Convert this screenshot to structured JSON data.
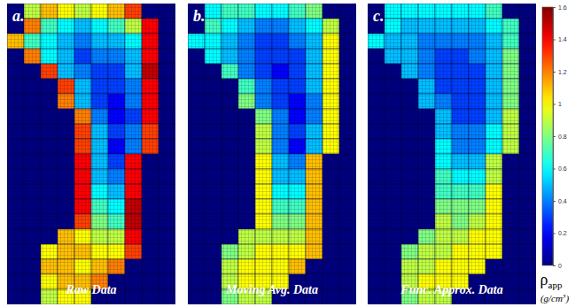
{
  "chart_data": {
    "type": "heatmap",
    "panels": [
      {
        "label": "a.",
        "title": "Raw Data",
        "cells": [
          [
            0,
            0.9,
            1.1,
            1.0,
            0.9,
            1.0,
            1.1,
            1.3,
            0,
            0
          ],
          [
            0,
            1.2,
            0.7,
            0.6,
            0.5,
            0.6,
            0.7,
            0.9,
            1.4,
            0
          ],
          [
            1.1,
            0.7,
            0.6,
            0.5,
            0.4,
            0.5,
            0.5,
            0.6,
            1.4,
            0
          ],
          [
            0,
            1.2,
            0.6,
            0.5,
            0.3,
            0.4,
            0.4,
            0.5,
            1.4,
            0
          ],
          [
            0,
            0,
            1.3,
            0.5,
            0.4,
            0.3,
            0.3,
            0.5,
            1.5,
            0
          ],
          [
            0,
            0,
            0,
            1.3,
            0.5,
            0.3,
            0.3,
            0.4,
            1.4,
            0
          ],
          [
            0,
            0,
            0,
            1.2,
            0.5,
            0.3,
            0.2,
            0.4,
            1.4,
            0
          ],
          [
            0,
            0,
            0,
            0,
            1.2,
            0.4,
            0.2,
            0.3,
            1.4,
            0
          ],
          [
            0,
            0,
            0,
            0,
            1.3,
            0.5,
            0.3,
            0.4,
            1.3,
            0
          ],
          [
            0,
            0,
            0,
            0,
            1.3,
            0.5,
            0.2,
            0.4,
            1.3,
            0
          ],
          [
            0,
            0,
            0,
            0,
            1.4,
            0.5,
            0.3,
            1.4,
            0,
            0
          ],
          [
            0,
            0,
            0,
            0,
            1.4,
            0.5,
            0.4,
            1.4,
            0,
            0
          ],
          [
            0,
            0,
            0,
            0,
            1.4,
            0.6,
            0.5,
            1.4,
            0,
            0
          ],
          [
            0,
            0,
            0,
            0,
            1.4,
            0.7,
            0.6,
            1.5,
            0,
            0
          ],
          [
            0,
            0,
            0,
            0,
            1.3,
            0.8,
            0.7,
            1.5,
            0,
            0
          ],
          [
            0,
            0,
            0,
            1.1,
            1.0,
            0.9,
            0.9,
            1.4,
            0,
            0
          ],
          [
            0,
            0,
            1.0,
            1.1,
            1.1,
            1.0,
            1.0,
            1.3,
            0,
            0
          ],
          [
            0,
            0,
            1.1,
            1.1,
            1.0,
            1.1,
            1.2,
            0,
            0,
            0
          ],
          [
            0,
            0,
            1.0,
            1.1,
            1.1,
            1.2,
            0,
            0,
            0,
            0
          ],
          [
            0,
            0,
            0.9,
            1.0,
            1.0,
            0,
            0,
            0,
            0,
            0
          ]
        ]
      },
      {
        "label": "b.",
        "title": "Moving Avg. Data",
        "cells": [
          [
            0,
            0.6,
            0.7,
            0.7,
            0.6,
            0.6,
            0.7,
            0.8,
            0,
            0
          ],
          [
            0,
            0.7,
            0.6,
            0.5,
            0.4,
            0.4,
            0.5,
            0.6,
            0.9,
            0
          ],
          [
            0.6,
            0.6,
            0.5,
            0.4,
            0.3,
            0.3,
            0.4,
            0.5,
            1.0,
            0
          ],
          [
            0,
            0.6,
            0.5,
            0.4,
            0.3,
            0.3,
            0.3,
            0.5,
            1.0,
            0
          ],
          [
            0,
            0,
            0.7,
            0.4,
            0.3,
            0.2,
            0.3,
            0.5,
            1.0,
            0
          ],
          [
            0,
            0,
            0,
            0.7,
            0.4,
            0.3,
            0.3,
            0.5,
            1.0,
            0
          ],
          [
            0,
            0,
            0,
            0.8,
            0.4,
            0.3,
            0.2,
            0.4,
            1.0,
            0
          ],
          [
            0,
            0,
            0,
            0,
            0.8,
            0.4,
            0.2,
            0.4,
            1.0,
            0
          ],
          [
            0,
            0,
            0,
            0,
            0.9,
            0.4,
            0.3,
            0.5,
            1.0,
            0
          ],
          [
            0,
            0,
            0,
            0,
            0.9,
            0.4,
            0.2,
            0.5,
            1.0,
            0
          ],
          [
            0,
            0,
            0,
            0,
            1.0,
            0.5,
            0.4,
            1.1,
            0,
            0
          ],
          [
            0,
            0,
            0,
            0,
            1.0,
            0.5,
            0.5,
            1.1,
            0,
            0
          ],
          [
            0,
            0,
            0,
            0,
            1.0,
            0.6,
            0.6,
            1.1,
            0,
            0
          ],
          [
            0,
            0,
            0,
            0,
            1.0,
            0.7,
            0.7,
            1.1,
            0,
            0
          ],
          [
            0,
            0,
            0,
            0,
            1.0,
            0.8,
            0.8,
            1.1,
            0,
            0
          ],
          [
            0,
            0,
            0,
            0.9,
            0.9,
            0.9,
            0.9,
            1.1,
            0,
            0
          ],
          [
            0,
            0,
            0.8,
            0.9,
            1.0,
            1.0,
            1.0,
            1.1,
            0,
            0
          ],
          [
            0,
            0,
            0.9,
            1.0,
            1.0,
            1.0,
            1.1,
            0,
            0,
            0
          ],
          [
            0,
            0,
            0.9,
            1.0,
            1.0,
            1.0,
            0,
            0,
            0,
            0
          ],
          [
            0,
            0,
            0.8,
            0.9,
            0.9,
            0,
            0,
            0,
            0,
            0
          ]
        ]
      },
      {
        "label": "c.",
        "title": "Func. Approx. Data",
        "cells": [
          [
            0,
            0.6,
            0.6,
            0.6,
            0.6,
            0.6,
            0.6,
            0.7,
            0,
            0
          ],
          [
            0,
            0.6,
            0.5,
            0.5,
            0.5,
            0.5,
            0.5,
            0.6,
            0.7,
            0
          ],
          [
            0.6,
            0.5,
            0.5,
            0.4,
            0.4,
            0.4,
            0.4,
            0.5,
            0.7,
            0
          ],
          [
            0,
            0.5,
            0.5,
            0.4,
            0.3,
            0.3,
            0.4,
            0.5,
            0.8,
            0
          ],
          [
            0,
            0,
            0.5,
            0.4,
            0.3,
            0.3,
            0.3,
            0.5,
            0.8,
            0
          ],
          [
            0,
            0,
            0,
            0.5,
            0.3,
            0.3,
            0.3,
            0.5,
            0.8,
            0
          ],
          [
            0,
            0,
            0,
            0.5,
            0.4,
            0.3,
            0.3,
            0.5,
            0.8,
            0
          ],
          [
            0,
            0,
            0,
            0,
            0.5,
            0.3,
            0.3,
            0.5,
            0.9,
            0
          ],
          [
            0,
            0,
            0,
            0,
            0.5,
            0.4,
            0.4,
            0.6,
            0.9,
            0
          ],
          [
            0,
            0,
            0,
            0,
            0.6,
            0.4,
            0.4,
            0.6,
            0.9,
            0
          ],
          [
            0,
            0,
            0,
            0,
            0.6,
            0.5,
            0.5,
            0.9,
            0,
            0
          ],
          [
            0,
            0,
            0,
            0,
            0.7,
            0.6,
            0.6,
            0.9,
            0,
            0
          ],
          [
            0,
            0,
            0,
            0,
            0.7,
            0.7,
            0.7,
            1.0,
            0,
            0
          ],
          [
            0,
            0,
            0,
            0,
            0.8,
            0.8,
            0.8,
            1.0,
            0,
            0
          ],
          [
            0,
            0,
            0,
            0,
            0.9,
            0.8,
            0.9,
            1.0,
            0,
            0
          ],
          [
            0,
            0,
            0,
            0.8,
            0.9,
            0.9,
            1.0,
            1.0,
            0,
            0
          ],
          [
            0,
            0,
            0.8,
            0.9,
            0.9,
            1.0,
            1.0,
            1.0,
            0,
            0
          ],
          [
            0,
            0,
            0.9,
            0.9,
            1.0,
            1.0,
            1.0,
            0,
            0,
            0
          ],
          [
            0,
            0,
            0.9,
            1.0,
            1.0,
            1.0,
            0,
            0,
            0,
            0
          ],
          [
            0,
            0,
            0.8,
            0.9,
            0.9,
            0,
            0,
            0,
            0,
            0
          ]
        ]
      }
    ],
    "colorbar": {
      "range": [
        0,
        1.6
      ],
      "ticks": [
        0,
        0.2,
        0.4,
        0.6,
        0.8,
        1,
        1.2,
        1.4,
        1.6
      ],
      "label": "ρapp",
      "unit": "(g/cm3)"
    }
  }
}
